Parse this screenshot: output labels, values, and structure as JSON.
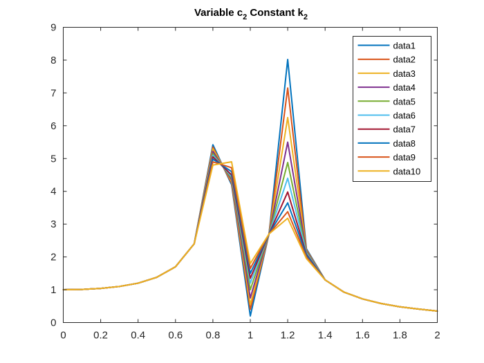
{
  "chart_data": {
    "type": "line",
    "title": {
      "main": "Variable c",
      "sub1": "2",
      "mid": " Constant k",
      "sub2": "2"
    },
    "xlim": [
      0,
      2
    ],
    "ylim": [
      0,
      9
    ],
    "xticks": [
      "0",
      "0.2",
      "0.4",
      "0.6",
      "0.8",
      "1",
      "1.2",
      "1.4",
      "1.6",
      "1.8",
      "2"
    ],
    "yticks": [
      "0",
      "1",
      "2",
      "3",
      "4",
      "5",
      "6",
      "7",
      "8",
      "9"
    ],
    "grid": false,
    "legend_position": "top-right",
    "x": [
      0,
      0.1,
      0.2,
      0.3,
      0.4,
      0.5,
      0.6,
      0.7,
      0.8,
      0.9,
      1.0,
      1.1,
      1.2,
      1.3,
      1.4,
      1.5,
      1.6,
      1.7,
      1.8,
      1.9,
      2.0
    ],
    "series": [
      {
        "name": "data1",
        "color": "#0072BD",
        "values": [
          1,
          1.01,
          1.04,
          1.1,
          1.2,
          1.38,
          1.7,
          2.4,
          5.42,
          4.2,
          0.2,
          2.7,
          8.02,
          2.25,
          1.3,
          0.93,
          0.72,
          0.58,
          0.48,
          0.41,
          0.35
        ]
      },
      {
        "name": "data2",
        "color": "#D95319",
        "values": [
          1,
          1.01,
          1.04,
          1.1,
          1.2,
          1.38,
          1.7,
          2.4,
          5.35,
          4.25,
          0.4,
          2.7,
          7.15,
          2.22,
          1.3,
          0.93,
          0.72,
          0.58,
          0.48,
          0.41,
          0.35
        ]
      },
      {
        "name": "data3",
        "color": "#EDB120",
        "values": [
          1,
          1.01,
          1.04,
          1.1,
          1.2,
          1.38,
          1.7,
          2.4,
          5.3,
          4.3,
          0.55,
          2.7,
          6.25,
          2.2,
          1.3,
          0.93,
          0.72,
          0.58,
          0.48,
          0.41,
          0.35
        ]
      },
      {
        "name": "data4",
        "color": "#7E2F8E",
        "values": [
          1,
          1.01,
          1.04,
          1.1,
          1.2,
          1.38,
          1.7,
          2.4,
          5.22,
          4.35,
          0.75,
          2.7,
          5.5,
          2.18,
          1.3,
          0.93,
          0.72,
          0.58,
          0.48,
          0.41,
          0.35
        ]
      },
      {
        "name": "data5",
        "color": "#77AC30",
        "values": [
          1,
          1.01,
          1.04,
          1.1,
          1.2,
          1.38,
          1.7,
          2.4,
          5.15,
          4.4,
          1.0,
          2.7,
          4.88,
          2.15,
          1.3,
          0.93,
          0.72,
          0.58,
          0.48,
          0.41,
          0.35
        ]
      },
      {
        "name": "data6",
        "color": "#4DBEEE",
        "values": [
          1,
          1.01,
          1.04,
          1.1,
          1.2,
          1.38,
          1.7,
          2.4,
          5.1,
          4.45,
          1.2,
          2.7,
          4.4,
          2.12,
          1.3,
          0.93,
          0.72,
          0.58,
          0.48,
          0.41,
          0.35
        ]
      },
      {
        "name": "data7",
        "color": "#A2142F",
        "values": [
          1,
          1.01,
          1.04,
          1.1,
          1.2,
          1.38,
          1.7,
          2.4,
          5.05,
          4.5,
          1.35,
          2.7,
          3.98,
          2.08,
          1.3,
          0.93,
          0.72,
          0.58,
          0.48,
          0.41,
          0.35
        ]
      },
      {
        "name": "data8",
        "color": "#0072BD",
        "values": [
          1,
          1.01,
          1.04,
          1.1,
          1.2,
          1.38,
          1.7,
          2.4,
          4.98,
          4.6,
          1.5,
          2.7,
          3.65,
          2.05,
          1.3,
          0.93,
          0.72,
          0.58,
          0.48,
          0.41,
          0.35
        ]
      },
      {
        "name": "data9",
        "color": "#D95319",
        "values": [
          1,
          1.01,
          1.04,
          1.1,
          1.2,
          1.38,
          1.7,
          2.4,
          4.9,
          4.72,
          1.65,
          2.7,
          3.38,
          2.0,
          1.3,
          0.93,
          0.72,
          0.58,
          0.48,
          0.41,
          0.35
        ]
      },
      {
        "name": "data10",
        "color": "#EDB120",
        "values": [
          1,
          1.01,
          1.04,
          1.1,
          1.2,
          1.38,
          1.7,
          2.4,
          4.8,
          4.9,
          1.8,
          2.7,
          3.18,
          1.95,
          1.3,
          0.93,
          0.72,
          0.58,
          0.48,
          0.41,
          0.35
        ]
      }
    ]
  }
}
